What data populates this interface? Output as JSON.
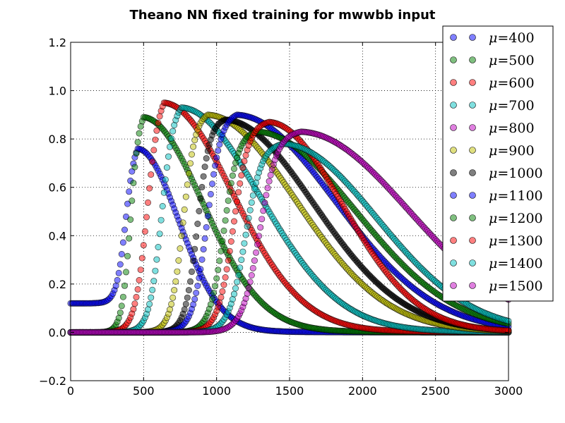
{
  "chart_data": {
    "type": "scatter",
    "title": "Theano NN fixed training for mwwbb input",
    "xlabel": "",
    "ylabel": "",
    "xlim": [
      0,
      3000
    ],
    "ylim": [
      -0.2,
      1.2
    ],
    "xticks": [
      0,
      500,
      1000,
      1500,
      2000,
      2500,
      3000
    ],
    "yticks": [
      -0.2,
      0.0,
      0.2,
      0.4,
      0.6,
      0.8,
      1.0,
      1.2
    ],
    "xtick_labels": [
      "0",
      "500",
      "1000",
      "1500",
      "2000",
      "2500",
      "3000"
    ],
    "ytick_labels": [
      "−0.2",
      "0.0",
      "0.2",
      "0.4",
      "0.6",
      "0.8",
      "1.0",
      "1.2"
    ],
    "grid": true,
    "legend_position": "upper-right, outside",
    "series": [
      {
        "name": "μ=400",
        "label_symbol": "μ",
        "label_value": "=400",
        "color": "#0000ff",
        "mu": 400,
        "peak_x": 460,
        "peak_y": 0.76,
        "rise_width": 90,
        "decay_width": 420,
        "y_at_zero": 0.12
      },
      {
        "name": "μ=500",
        "label_symbol": "μ",
        "label_value": "=500",
        "color": "#008000",
        "mu": 500,
        "peak_x": 500,
        "peak_y": 0.89,
        "rise_width": 85,
        "decay_width": 600,
        "y_at_zero": 0.0
      },
      {
        "name": "μ=600",
        "label_symbol": "μ",
        "label_value": "=600",
        "color": "#ff0000",
        "mu": 600,
        "peak_x": 640,
        "peak_y": 0.95,
        "rise_width": 120,
        "decay_width": 700,
        "y_at_zero": 0.0
      },
      {
        "name": "μ=700",
        "label_symbol": "μ",
        "label_value": "=700",
        "color": "#00bfbf",
        "mu": 700,
        "peak_x": 760,
        "peak_y": 0.93,
        "rise_width": 120,
        "decay_width": 800,
        "y_at_zero": 0.0
      },
      {
        "name": "μ=800",
        "label_symbol": "μ",
        "label_value": "=800",
        "color": "#bf00bf",
        "mu": 800,
        "peak_x": 0,
        "peak_y": 0,
        "rise_width": 0,
        "decay_width": 0,
        "y_at_zero": 0.0
      },
      {
        "name": "μ=900",
        "label_symbol": "μ",
        "label_value": "=900",
        "color": "#bfbf00",
        "mu": 900,
        "peak_x": 940,
        "peak_y": 0.9,
        "rise_width": 120,
        "decay_width": 900,
        "y_at_zero": 0.0
      },
      {
        "name": "μ=1000",
        "label_symbol": "μ",
        "label_value": "=1000",
        "color": "#000000",
        "mu": 1000,
        "peak_x": 1060,
        "peak_y": 0.88,
        "rise_width": 120,
        "decay_width": 900,
        "y_at_zero": 0.0
      },
      {
        "name": "μ=1100",
        "label_symbol": "μ",
        "label_value": "=1100",
        "color": "#0000ff",
        "mu": 1100,
        "peak_x": 1140,
        "peak_y": 0.9,
        "rise_width": 140,
        "decay_width": 1000,
        "y_at_zero": 0.0
      },
      {
        "name": "μ=1200",
        "label_symbol": "μ",
        "label_value": "=1200",
        "color": "#008000",
        "mu": 1200,
        "peak_x": 1280,
        "peak_y": 0.83,
        "rise_width": 140,
        "decay_width": 1000,
        "y_at_zero": 0.0
      },
      {
        "name": "μ=1300",
        "label_symbol": "μ",
        "label_value": "=1300",
        "color": "#ff0000",
        "mu": 1300,
        "peak_x": 1360,
        "peak_y": 0.87,
        "rise_width": 150,
        "decay_width": 750,
        "y_at_zero": 0.0
      },
      {
        "name": "μ=1400",
        "label_symbol": "μ",
        "label_value": "=1400",
        "color": "#00bfbf",
        "mu": 1400,
        "peak_x": 1460,
        "peak_y": 0.78,
        "rise_width": 160,
        "decay_width": 950,
        "y_at_zero": 0.0
      },
      {
        "name": "μ=1500",
        "label_symbol": "μ",
        "label_value": "=1500",
        "color": "#bf00bf",
        "mu": 1500,
        "peak_x": 1580,
        "peak_y": 0.83,
        "rise_width": 170,
        "decay_width": 1100,
        "y_at_zero": 0.0
      }
    ]
  }
}
